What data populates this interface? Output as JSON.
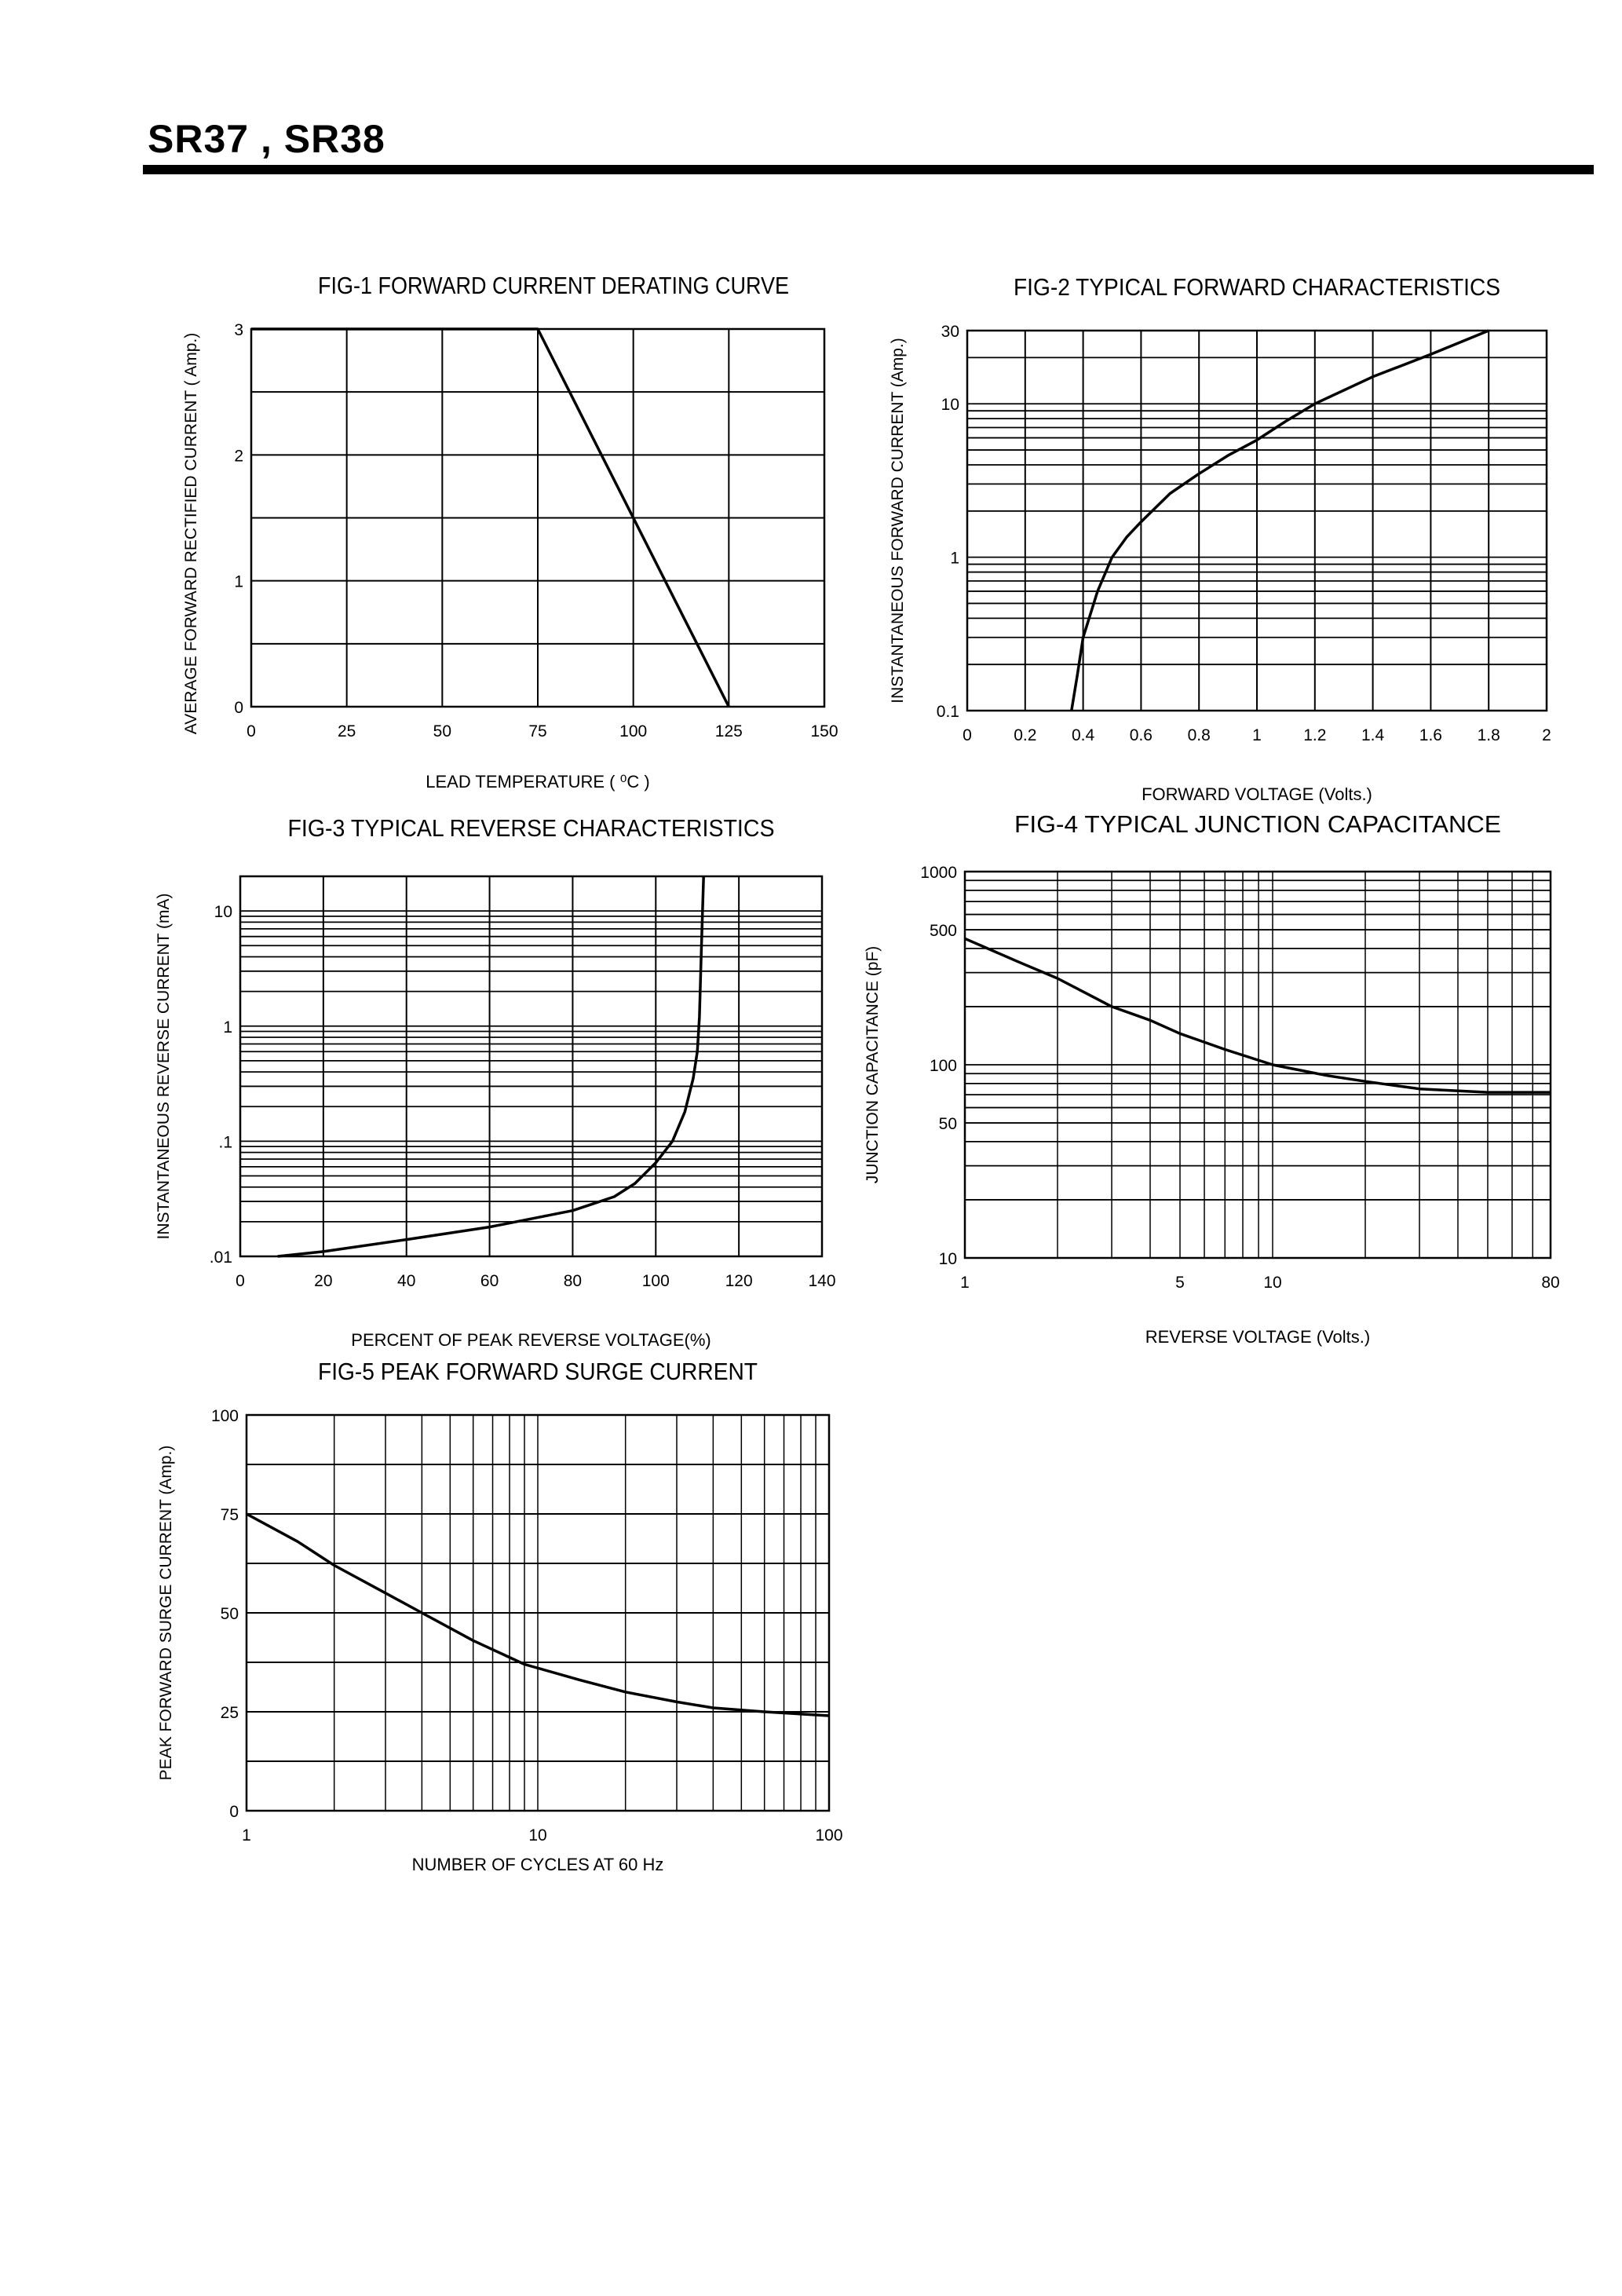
{
  "header": {
    "title": "SR37 , SR38"
  },
  "chart_data": [
    {
      "type": "line",
      "title": "FIG-1 FORWARD CURRENT DERATING CURVE",
      "xlabel": "LEAD TEMPERATURE ( ⁰C )",
      "ylabel": "AVERAGE FORWARD RECTIFIED CURRENT ( Amp.)",
      "xscale": "linear",
      "yscale": "linear",
      "xlim": [
        0,
        150
      ],
      "ylim": [
        0,
        3
      ],
      "grid": true,
      "xticks": [
        "0",
        "25",
        "50",
        "75",
        "100",
        "125",
        "150"
      ],
      "yticks": [
        "0",
        "1",
        "2",
        "3"
      ],
      "x": [
        0,
        75,
        125
      ],
      "y": [
        3,
        3,
        0
      ]
    },
    {
      "type": "line",
      "title": "FIG-2 TYPICAL FORWARD CHARACTERISTICS",
      "xlabel": "FORWARD VOLTAGE (Volts.)",
      "ylabel": "INSTANTANEOUS FORWARD CURRENT (Amp.)",
      "xscale": "linear",
      "yscale": "log",
      "xlim": [
        0,
        2
      ],
      "ylim": [
        0.1,
        30
      ],
      "grid": true,
      "xticks": [
        "0",
        "0.2",
        "0.4",
        "0.6",
        "0.8",
        "1",
        "1.2",
        "1.4",
        "1.6",
        "1.8",
        "2"
      ],
      "yticks": [
        "0.1",
        "1",
        "10",
        "30"
      ],
      "x": [
        0.36,
        0.38,
        0.4,
        0.45,
        0.5,
        0.55,
        0.6,
        0.7,
        0.8,
        0.9,
        1.0,
        1.1,
        1.2,
        1.4,
        1.6,
        1.8
      ],
      "y": [
        0.1,
        0.17,
        0.3,
        0.6,
        1.0,
        1.35,
        1.7,
        2.6,
        3.5,
        4.6,
        5.8,
        7.7,
        10,
        15,
        21,
        30
      ]
    },
    {
      "type": "line",
      "title": "FIG-3 TYPICAL REVERSE CHARACTERISTICS",
      "xlabel": "PERCENT OF PEAK REVERSE VOLTAGE(%)",
      "ylabel": "INSTANTANEOUS REVERSE CURRENT (mA)",
      "xscale": "linear",
      "yscale": "log",
      "xlim": [
        0,
        140
      ],
      "ylim": [
        0.01,
        20
      ],
      "grid": true,
      "xticks": [
        "0",
        "20",
        "40",
        "60",
        "80",
        "100",
        "120",
        "140"
      ],
      "yticks": [
        ".01",
        ".1",
        "1",
        "10"
      ],
      "x": [
        9,
        20,
        40,
        60,
        80,
        90,
        95,
        100,
        104,
        107,
        109,
        110,
        110.5,
        111,
        111.5
      ],
      "y": [
        0.01,
        0.011,
        0.014,
        0.018,
        0.025,
        0.033,
        0.043,
        0.065,
        0.1,
        0.18,
        0.35,
        0.6,
        1.2,
        5,
        20
      ]
    },
    {
      "type": "line",
      "title": "FIG-4 TYPICAL JUNCTION CAPACITANCE",
      "xlabel": "REVERSE VOLTAGE (Volts.)",
      "ylabel": "JUNCTION CAPACITANCE (pF)",
      "xscale": "log",
      "yscale": "log",
      "xlim": [
        1,
        80
      ],
      "ylim": [
        10,
        1000
      ],
      "grid": true,
      "xticks": [
        "1",
        "5",
        "10",
        "80"
      ],
      "yticks": [
        "10",
        "50",
        "100",
        "500",
        "1000"
      ],
      "x": [
        1,
        1.5,
        2,
        3,
        4,
        5,
        7,
        10,
        15,
        20,
        30,
        50,
        80
      ],
      "y": [
        450,
        340,
        280,
        200,
        170,
        145,
        120,
        100,
        88,
        82,
        75,
        72,
        72
      ]
    },
    {
      "type": "line",
      "title": "FIG-5 PEAK FORWARD SURGE CURRENT",
      "xlabel": "NUMBER OF CYCLES AT 60 Hz",
      "ylabel": "PEAK FORWARD SURGE CURRENT (Amp.)",
      "xscale": "log",
      "yscale": "linear",
      "xlim": [
        1,
        100
      ],
      "ylim": [
        0,
        100
      ],
      "grid": true,
      "xticks": [
        "1",
        "10",
        "100"
      ],
      "yticks": [
        "0",
        "25",
        "50",
        "75",
        "100"
      ],
      "x": [
        1,
        1.5,
        2,
        3,
        4,
        6,
        9,
        14,
        20,
        30,
        40,
        60,
        100
      ],
      "y": [
        75,
        68,
        62,
        55,
        50,
        43,
        37,
        33,
        30,
        27.5,
        26,
        25,
        24
      ]
    }
  ]
}
